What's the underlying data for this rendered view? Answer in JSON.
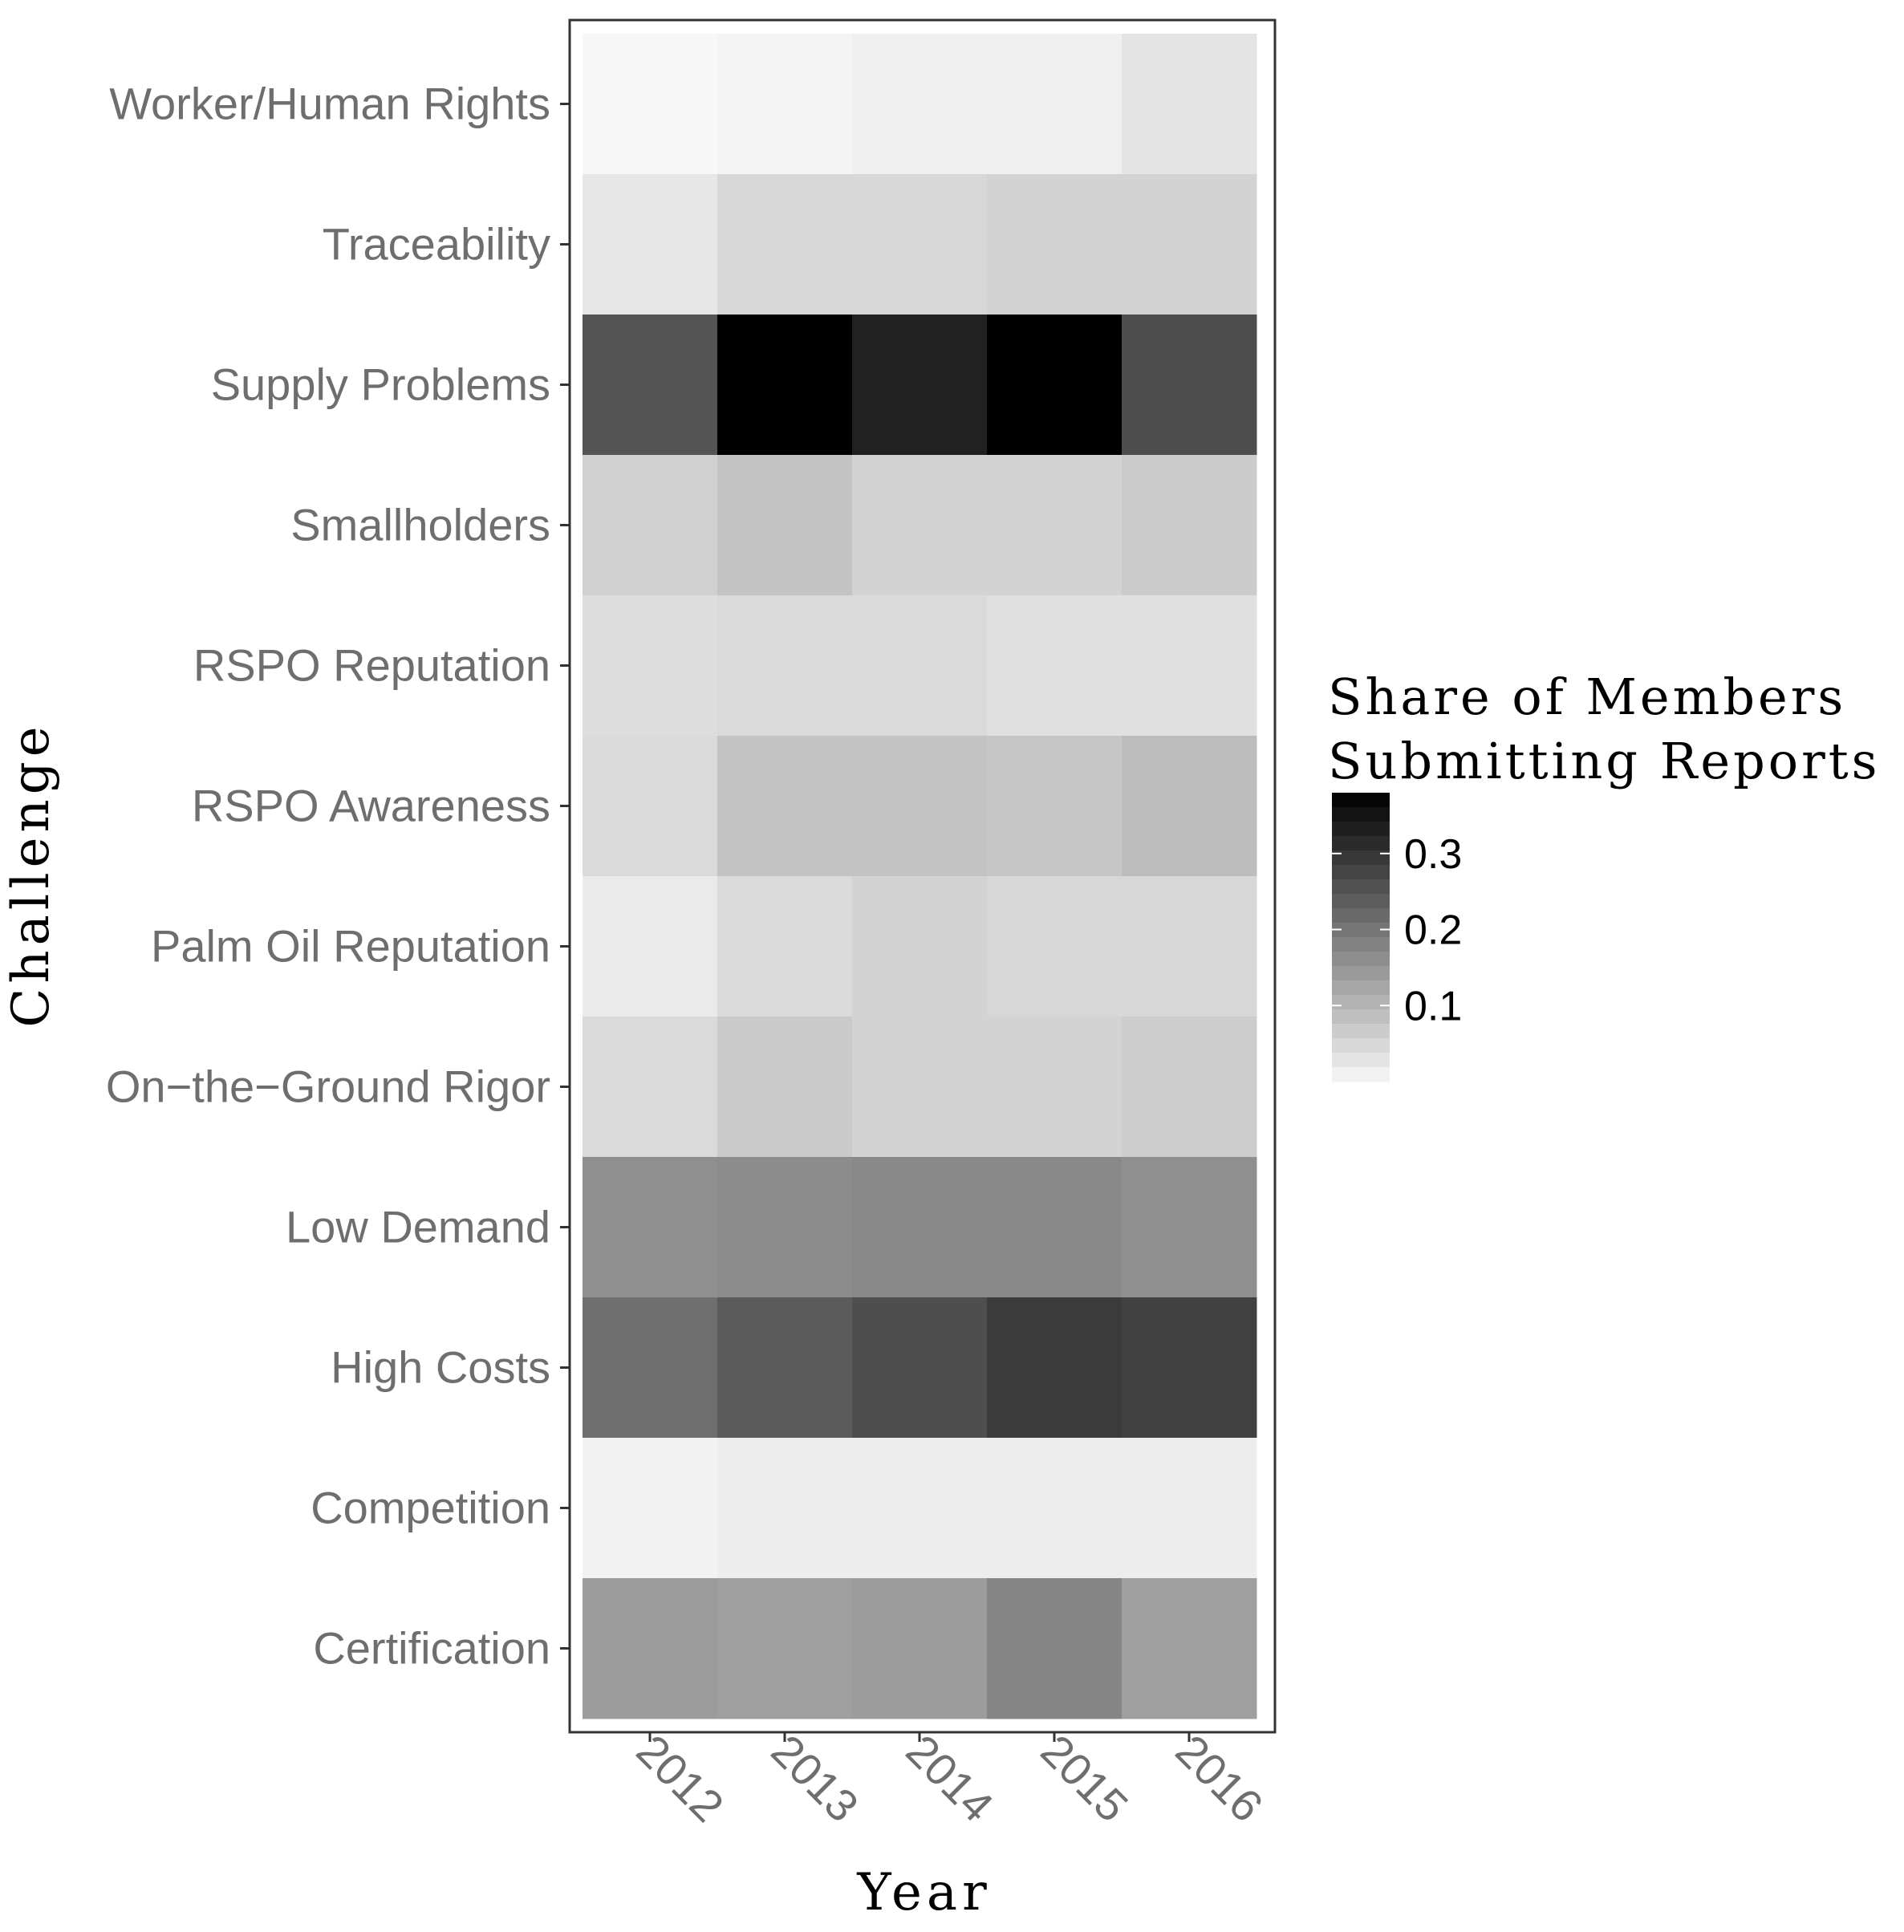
{
  "chart_data": {
    "type": "heatmap",
    "title": "",
    "xlabel": "Year",
    "ylabel": "Challenge",
    "x": [
      "2012",
      "2013",
      "2014",
      "2015",
      "2016"
    ],
    "y": [
      "Worker/Human Rights",
      "Traceability",
      "Supply Problems",
      "Smallholders",
      "RSPO Reputation",
      "RSPO Awareness",
      "Palm Oil Reputation",
      "On−the−Ground Rigor",
      "Low Demand",
      "High Costs",
      "Competition",
      "Certification"
    ],
    "values": [
      [
        0.0,
        0.005,
        0.012,
        0.012,
        0.03
      ],
      [
        0.025,
        0.05,
        0.05,
        0.055,
        0.055
      ],
      [
        0.25,
        0.38,
        0.33,
        0.38,
        0.26
      ],
      [
        0.06,
        0.08,
        0.055,
        0.055,
        0.068
      ],
      [
        0.04,
        0.045,
        0.045,
        0.035,
        0.035
      ],
      [
        0.045,
        0.08,
        0.08,
        0.075,
        0.09
      ],
      [
        0.02,
        0.045,
        0.055,
        0.05,
        0.05
      ],
      [
        0.045,
        0.07,
        0.055,
        0.055,
        0.065
      ],
      [
        0.16,
        0.165,
        0.17,
        0.17,
        0.16
      ],
      [
        0.21,
        0.24,
        0.26,
        0.29,
        0.28
      ],
      [
        0.008,
        0.015,
        0.015,
        0.015,
        0.015
      ],
      [
        0.14,
        0.135,
        0.14,
        0.175,
        0.135
      ]
    ],
    "legend": {
      "title_line1": "Share of Members",
      "title_line2": "Submitting Reports",
      "ticks": [
        0.3,
        0.2,
        0.1
      ],
      "tick_labels": [
        "0.3",
        "0.2",
        "0.1"
      ],
      "range": [
        0,
        0.38
      ],
      "low_color": "#f7f7f7",
      "high_color": "#000000",
      "position": "right"
    }
  }
}
